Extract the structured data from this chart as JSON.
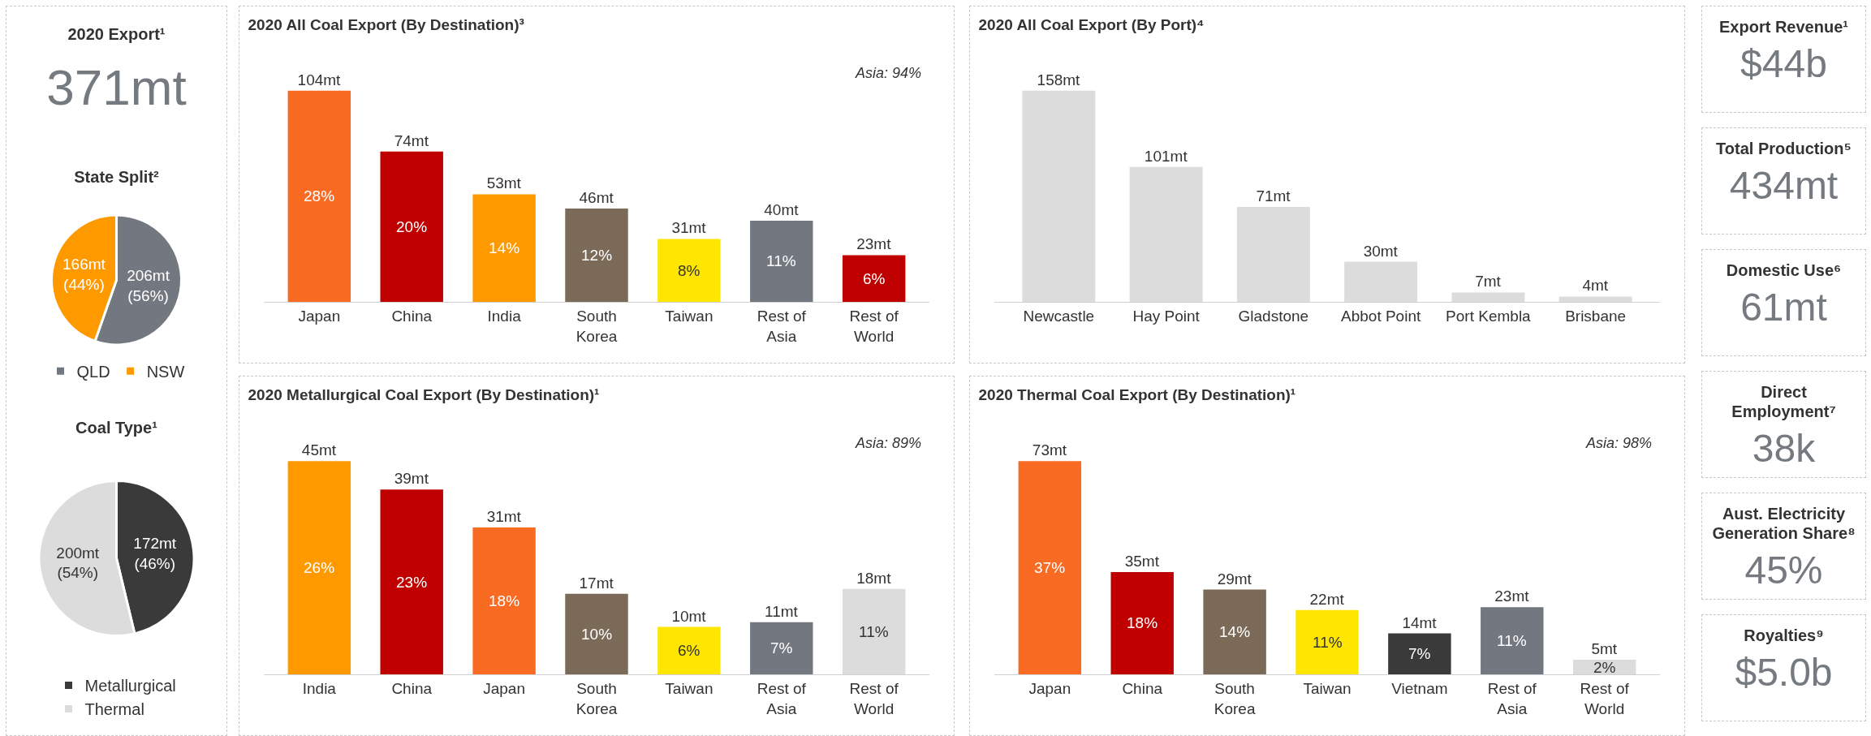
{
  "chart_data": [
    {
      "type": "other",
      "title": "2020 Export¹",
      "annotations": [
        "371mt"
      ]
    },
    {
      "type": "pie",
      "title": "State Split²",
      "categories": [
        "QLD",
        "NSW"
      ],
      "values": [
        206,
        166
      ],
      "colors": [
        "#737880",
        "#ff9900"
      ],
      "value_labels": [
        "206mt (56%)",
        "166mt (44%)"
      ],
      "legend": "bottom"
    },
    {
      "type": "pie",
      "title": "Coal Type¹",
      "categories": [
        "Metallurgical",
        "Thermal"
      ],
      "values": [
        172,
        200
      ],
      "colors": [
        "#3a3a3a",
        "#dcdcdc"
      ],
      "value_labels": [
        "172mt (46%)",
        "200mt (54%)"
      ],
      "legend": "bottom"
    },
    {
      "type": "bar",
      "title": "2020 All Coal Export (By Destination)³",
      "categories": [
        "Japan",
        "China",
        "India",
        "South Korea",
        "Taiwan",
        "Rest of Asia",
        "Rest of World"
      ],
      "values": [
        104,
        74,
        53,
        46,
        31,
        40,
        23
      ],
      "colors": [
        "#f96b22",
        "#c00000",
        "#ff9900",
        "#7b6a58",
        "#ffe600",
        "#737880",
        "#c00000"
      ],
      "value_labels": [
        "104mt",
        "74mt",
        "53mt",
        "46mt",
        "31mt",
        "40mt",
        "23mt"
      ],
      "tick_labels": "x",
      "annotations": [
        "Asia: 94%",
        "28%",
        "20%",
        "14%",
        "12%",
        "8%",
        "11%",
        "6%"
      ]
    },
    {
      "type": "bar",
      "title": "2020 All Coal Export (By Port)⁴",
      "categories": [
        "Newcastle",
        "Hay Point",
        "Gladstone",
        "Abbot Point",
        "Port Kembla",
        "Brisbane"
      ],
      "values": [
        158,
        101,
        71,
        30,
        7,
        4
      ],
      "colors": [
        "#dcdcdc",
        "#dcdcdc",
        "#dcdcdc",
        "#dcdcdc",
        "#dcdcdc",
        "#dcdcdc"
      ],
      "value_labels": [
        "158mt",
        "101mt",
        "71mt",
        "30mt",
        "7mt",
        "4mt"
      ],
      "tick_labels": "x"
    },
    {
      "type": "bar",
      "title": "2020 Metallurgical Coal Export (By Destination)¹",
      "categories": [
        "India",
        "China",
        "Japan",
        "South Korea",
        "Taiwan",
        "Rest of Asia",
        "Rest of World"
      ],
      "values": [
        45,
        39,
        31,
        17,
        10,
        11,
        18
      ],
      "colors": [
        "#ff9900",
        "#c00000",
        "#f96b22",
        "#7b6a58",
        "#ffe600",
        "#737880",
        "#dcdcdc"
      ],
      "value_labels": [
        "45mt",
        "39mt",
        "31mt",
        "17mt",
        "10mt",
        "11mt",
        "18mt"
      ],
      "tick_labels": "x",
      "annotations": [
        "Asia: 89%",
        "26%",
        "23%",
        "18%",
        "10%",
        "6%",
        "7%",
        "11%"
      ]
    },
    {
      "type": "bar",
      "title": "2020 Thermal Coal Export (By Destination)¹",
      "categories": [
        "Japan",
        "China",
        "South Korea",
        "Taiwan",
        "Vietnam",
        "Rest of Asia",
        "Rest of World"
      ],
      "values": [
        73,
        35,
        29,
        22,
        14,
        23,
        5
      ],
      "colors": [
        "#f96b22",
        "#c00000",
        "#7b6a58",
        "#ffe600",
        "#3a3a3a",
        "#737880",
        "#dcdcdc"
      ],
      "value_labels": [
        "73mt",
        "35mt",
        "29mt",
        "22mt",
        "14mt",
        "23mt",
        "5mt"
      ],
      "tick_labels": "x",
      "annotations": [
        "Asia: 98%",
        "37%",
        "18%",
        "14%",
        "11%",
        "7%",
        "11%",
        "2%"
      ]
    },
    {
      "type": "other",
      "title": "Export Revenue¹",
      "annotations": [
        "$44b"
      ]
    },
    {
      "type": "other",
      "title": "Total Production⁵",
      "annotations": [
        "434mt"
      ]
    },
    {
      "type": "other",
      "title": "Domestic Use⁶",
      "annotations": [
        "61mt"
      ]
    },
    {
      "type": "other",
      "title": "Direct Employment⁷",
      "annotations": [
        "38k"
      ]
    },
    {
      "type": "other",
      "title": "Aust. Electricity Generation Share⁸",
      "annotations": [
        "45%"
      ]
    },
    {
      "type": "other",
      "title": "Royalties⁹",
      "annotations": [
        "$5.0b"
      ]
    }
  ]
}
